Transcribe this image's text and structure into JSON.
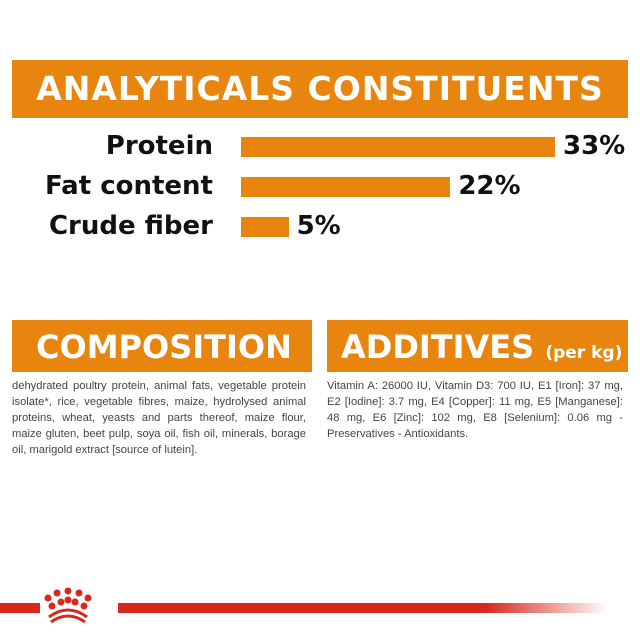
{
  "header": {
    "title": "ANALYTICALS CONSTITUENTS"
  },
  "chart_data": {
    "type": "bar",
    "orientation": "horizontal",
    "categories": [
      "Protein",
      "Fat content",
      "Crude fiber"
    ],
    "values": [
      33,
      22,
      5
    ],
    "value_labels": [
      "33%",
      "22%",
      "5%"
    ],
    "unit": "%",
    "color": "#e8850f"
  },
  "composition": {
    "title": "COMPOSITION",
    "text": "dehydrated poultry protein, animal fats, vegetable protein isolate*, rice, vegetable fibres, maize, hydrolysed animal proteins, wheat, yeasts and parts thereof, maize flour, maize gluten, beet pulp, soya oil, fish oil, minerals, borage oil, marigold extract [source of lutein]."
  },
  "additives": {
    "title": "ADDITIVES",
    "unit": "(per kg)",
    "text": "Vitamin A: 26000 IU, Vitamin D3: 700 IU, E1 [Iron]: 37 mg, E2 [Iodine]: 3.7 mg, E4 [Copper]: 11 mg, E5 [Manganese]: 48 mg, E6 [Zinc]: 102 mg, E8 [Selenium]: 0.06 mg - Preservatives - Antioxidants."
  },
  "footer": {
    "logo": "crown-logo",
    "line_color": "#d8281e"
  }
}
